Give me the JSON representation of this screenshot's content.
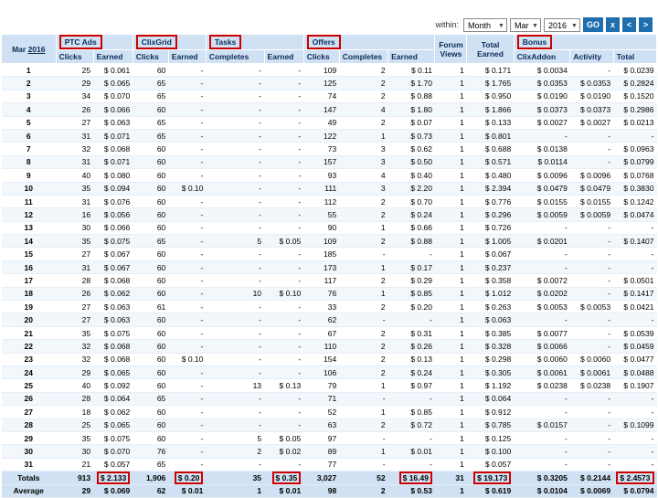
{
  "filters": {
    "within_label": "within:",
    "period": "Month",
    "month": "Mar",
    "year": "2016",
    "go_label": "GO",
    "nav_labels": [
      "x",
      "<",
      ">"
    ]
  },
  "header": {
    "month_prefix": "Mar",
    "year_link": "2016",
    "groups": [
      "PTC Ads",
      "ClixGrid",
      "Tasks",
      "Offers",
      "Bonus"
    ],
    "forum_views": "Forum Views",
    "total_earned": "Total Earned",
    "sub": [
      "Clicks",
      "Earned",
      "Clicks",
      "Earned",
      "Completes",
      "Earned",
      "Clicks",
      "Completes",
      "Earned",
      "ClixAddon",
      "Activity",
      "Total"
    ]
  },
  "rows": [
    [
      "1",
      "25",
      "$ 0.061",
      "60",
      "-",
      "-",
      "-",
      "109",
      "2",
      "$ 0.11",
      "1",
      "$ 0.171",
      "$ 0.0034",
      "-",
      "$ 0.0239"
    ],
    [
      "2",
      "29",
      "$ 0.065",
      "65",
      "-",
      "-",
      "-",
      "125",
      "2",
      "$ 1.70",
      "1",
      "$ 1.765",
      "$ 0.0353",
      "$ 0.0353",
      "$ 0.2824"
    ],
    [
      "3",
      "34",
      "$ 0.070",
      "65",
      "-",
      "-",
      "-",
      "74",
      "2",
      "$ 0.88",
      "1",
      "$ 0.950",
      "$ 0.0190",
      "$ 0.0190",
      "$ 0.1520"
    ],
    [
      "4",
      "26",
      "$ 0.066",
      "60",
      "-",
      "-",
      "-",
      "147",
      "4",
      "$ 1.80",
      "1",
      "$ 1.866",
      "$ 0.0373",
      "$ 0.0373",
      "$ 0.2986"
    ],
    [
      "5",
      "27",
      "$ 0.063",
      "65",
      "-",
      "-",
      "-",
      "49",
      "2",
      "$ 0.07",
      "1",
      "$ 0.133",
      "$ 0.0027",
      "$ 0.0027",
      "$ 0.0213"
    ],
    [
      "6",
      "31",
      "$ 0.071",
      "65",
      "-",
      "-",
      "-",
      "122",
      "1",
      "$ 0.73",
      "1",
      "$ 0.801",
      "-",
      "-",
      "-"
    ],
    [
      "7",
      "32",
      "$ 0.068",
      "60",
      "-",
      "-",
      "-",
      "73",
      "3",
      "$ 0.62",
      "1",
      "$ 0.688",
      "$ 0.0138",
      "-",
      "$ 0.0963"
    ],
    [
      "8",
      "31",
      "$ 0.071",
      "60",
      "-",
      "-",
      "-",
      "157",
      "3",
      "$ 0.50",
      "1",
      "$ 0.571",
      "$ 0.0114",
      "-",
      "$ 0.0799"
    ],
    [
      "9",
      "40",
      "$ 0.080",
      "60",
      "-",
      "-",
      "-",
      "93",
      "4",
      "$ 0.40",
      "1",
      "$ 0.480",
      "$ 0.0096",
      "$ 0.0096",
      "$ 0.0768"
    ],
    [
      "10",
      "35",
      "$ 0.094",
      "60",
      "$ 0.10",
      "-",
      "-",
      "111",
      "3",
      "$ 2.20",
      "1",
      "$ 2.394",
      "$ 0.0479",
      "$ 0.0479",
      "$ 0.3830"
    ],
    [
      "11",
      "31",
      "$ 0.076",
      "60",
      "-",
      "-",
      "-",
      "112",
      "2",
      "$ 0.70",
      "1",
      "$ 0.776",
      "$ 0.0155",
      "$ 0.0155",
      "$ 0.1242"
    ],
    [
      "12",
      "16",
      "$ 0.056",
      "60",
      "-",
      "-",
      "-",
      "55",
      "2",
      "$ 0.24",
      "1",
      "$ 0.296",
      "$ 0.0059",
      "$ 0.0059",
      "$ 0.0474"
    ],
    [
      "13",
      "30",
      "$ 0.066",
      "60",
      "-",
      "-",
      "-",
      "90",
      "1",
      "$ 0.66",
      "1",
      "$ 0.726",
      "-",
      "-",
      "-"
    ],
    [
      "14",
      "35",
      "$ 0.075",
      "65",
      "-",
      "5",
      "$ 0.05",
      "109",
      "2",
      "$ 0.88",
      "1",
      "$ 1.005",
      "$ 0.0201",
      "-",
      "$ 0.1407"
    ],
    [
      "15",
      "27",
      "$ 0.067",
      "60",
      "-",
      "-",
      "-",
      "185",
      "-",
      "-",
      "1",
      "$ 0.067",
      "-",
      "-",
      "-"
    ],
    [
      "16",
      "31",
      "$ 0.067",
      "60",
      "-",
      "-",
      "-",
      "173",
      "1",
      "$ 0.17",
      "1",
      "$ 0.237",
      "-",
      "-",
      "-"
    ],
    [
      "17",
      "28",
      "$ 0.068",
      "60",
      "-",
      "-",
      "-",
      "117",
      "2",
      "$ 0.29",
      "1",
      "$ 0.358",
      "$ 0.0072",
      "-",
      "$ 0.0501"
    ],
    [
      "18",
      "26",
      "$ 0.062",
      "60",
      "-",
      "10",
      "$ 0.10",
      "76",
      "1",
      "$ 0.85",
      "1",
      "$ 1.012",
      "$ 0.0202",
      "-",
      "$ 0.1417"
    ],
    [
      "19",
      "27",
      "$ 0.063",
      "61",
      "-",
      "-",
      "-",
      "33",
      "2",
      "$ 0.20",
      "1",
      "$ 0.263",
      "$ 0.0053",
      "$ 0.0053",
      "$ 0.0421"
    ],
    [
      "20",
      "27",
      "$ 0.063",
      "60",
      "-",
      "-",
      "-",
      "62",
      "-",
      "-",
      "1",
      "$ 0.063",
      "-",
      "-",
      "-"
    ],
    [
      "21",
      "35",
      "$ 0.075",
      "60",
      "-",
      "-",
      "-",
      "67",
      "2",
      "$ 0.31",
      "1",
      "$ 0.385",
      "$ 0.0077",
      "-",
      "$ 0.0539"
    ],
    [
      "22",
      "32",
      "$ 0.068",
      "60",
      "-",
      "-",
      "-",
      "110",
      "2",
      "$ 0.26",
      "1",
      "$ 0.328",
      "$ 0.0066",
      "-",
      "$ 0.0459"
    ],
    [
      "23",
      "32",
      "$ 0.068",
      "60",
      "$ 0.10",
      "-",
      "-",
      "154",
      "2",
      "$ 0.13",
      "1",
      "$ 0.298",
      "$ 0.0060",
      "$ 0.0060",
      "$ 0.0477"
    ],
    [
      "24",
      "29",
      "$ 0.065",
      "60",
      "-",
      "-",
      "-",
      "106",
      "2",
      "$ 0.24",
      "1",
      "$ 0.305",
      "$ 0.0061",
      "$ 0.0061",
      "$ 0.0488"
    ],
    [
      "25",
      "40",
      "$ 0.092",
      "60",
      "-",
      "13",
      "$ 0.13",
      "79",
      "1",
      "$ 0.97",
      "1",
      "$ 1.192",
      "$ 0.0238",
      "$ 0.0238",
      "$ 0.1907"
    ],
    [
      "26",
      "28",
      "$ 0.064",
      "65",
      "-",
      "-",
      "-",
      "71",
      "-",
      "-",
      "1",
      "$ 0.064",
      "-",
      "-",
      "-"
    ],
    [
      "27",
      "18",
      "$ 0.062",
      "60",
      "-",
      "-",
      "-",
      "52",
      "1",
      "$ 0.85",
      "1",
      "$ 0.912",
      "-",
      "-",
      "-"
    ],
    [
      "28",
      "25",
      "$ 0.065",
      "60",
      "-",
      "-",
      "-",
      "63",
      "2",
      "$ 0.72",
      "1",
      "$ 0.785",
      "$ 0.0157",
      "-",
      "$ 0.1099"
    ],
    [
      "29",
      "35",
      "$ 0.075",
      "60",
      "-",
      "5",
      "$ 0.05",
      "97",
      "-",
      "-",
      "1",
      "$ 0.125",
      "-",
      "-",
      "-"
    ],
    [
      "30",
      "30",
      "$ 0.070",
      "76",
      "-",
      "2",
      "$ 0.02",
      "89",
      "1",
      "$ 0.01",
      "1",
      "$ 0.100",
      "-",
      "-",
      "-"
    ],
    [
      "31",
      "21",
      "$ 0.057",
      "65",
      "-",
      "-",
      "-",
      "77",
      "-",
      "-",
      "1",
      "$ 0.057",
      "-",
      "-",
      "-"
    ]
  ],
  "totals": [
    "Totals",
    "913",
    "$ 2.133",
    "1,906",
    "$ 0.20",
    "35",
    "$ 0.35",
    "3,027",
    "52",
    "$ 16.49",
    "31",
    "$ 19.173",
    "$ 0.3205",
    "$ 0.2144",
    "$ 2.4573"
  ],
  "average": [
    "Average",
    "29",
    "$ 0.069",
    "62",
    "$ 0.01",
    "1",
    "$ 0.01",
    "98",
    "2",
    "$ 0.53",
    "1",
    "$ 0.619",
    "$ 0.0104",
    "$ 0.0069",
    "$ 0.0794"
  ]
}
